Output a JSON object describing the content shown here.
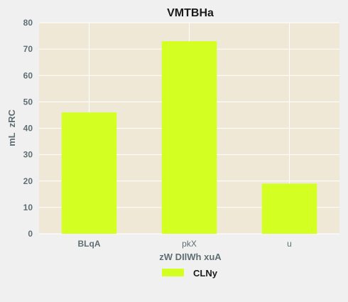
{
  "chart_data": {
    "type": "bar",
    "title": "VMTBHa",
    "xlabel": "zW DIlWh xuA",
    "ylabel": "mL  zRC",
    "categories": [
      "BLqA",
      "pkX",
      "u"
    ],
    "series": [
      {
        "name": "CLNy",
        "values": [
          46,
          73,
          19
        ]
      }
    ],
    "ylim": [
      0,
      80
    ],
    "yticks": [
      0,
      10,
      20,
      30,
      40,
      50,
      60,
      70,
      80
    ],
    "grid": true,
    "legend_position": "bottom-center",
    "colors": {
      "bar": "#d4ff22",
      "plot_background": "#efe8d7",
      "page_background": "#f0f0f0",
      "grid": "#ffffff",
      "tick_text": "#5e6e73"
    }
  }
}
